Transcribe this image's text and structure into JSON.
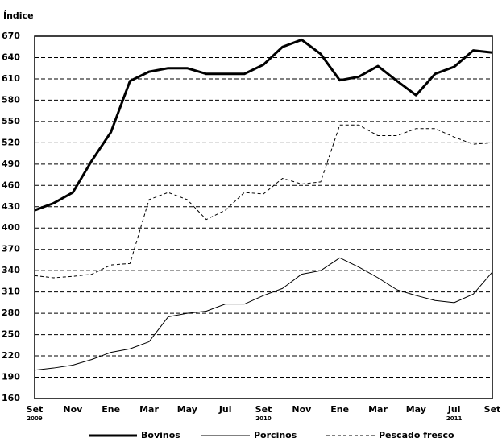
{
  "chart_data": {
    "type": "line",
    "y_label": "Índice",
    "categories": [
      "Set",
      null,
      "Nov",
      null,
      "Ene",
      null,
      "Mar",
      null,
      "May",
      null,
      "Jul",
      null,
      "Set",
      null,
      "Nov",
      null,
      "Ene",
      null,
      "Mar",
      null,
      "May",
      null,
      "Jul",
      null,
      "Set"
    ],
    "year_labels": [
      {
        "index": 0,
        "label": "2009"
      },
      {
        "index": 12,
        "label": "2010"
      },
      {
        "index": 22,
        "label": "2011"
      }
    ],
    "series": [
      {
        "name": "Bovinos",
        "color": "#000000",
        "style": "thick",
        "values": [
          425,
          435,
          450,
          495,
          535,
          607,
          620,
          625,
          625,
          617,
          617,
          617,
          630,
          655,
          665,
          645,
          608,
          613,
          628,
          607,
          587,
          617,
          627,
          650,
          647
        ]
      },
      {
        "name": "Porcinos",
        "color": "#000000",
        "style": "thin",
        "values": [
          200,
          203,
          207,
          215,
          225,
          230,
          240,
          275,
          280,
          283,
          293,
          293,
          305,
          315,
          335,
          340,
          358,
          345,
          330,
          313,
          305,
          298,
          295,
          307,
          338
        ]
      },
      {
        "name": "Pescado fresco",
        "color": "#000000",
        "style": "dashed",
        "values": [
          333,
          330,
          332,
          335,
          348,
          350,
          440,
          450,
          440,
          412,
          425,
          450,
          448,
          470,
          462,
          465,
          545,
          545,
          530,
          530,
          540,
          540,
          528,
          518,
          520
        ]
      }
    ],
    "ylim": [
      160,
      670
    ],
    "yticks": [
      160,
      190,
      220,
      250,
      280,
      310,
      340,
      370,
      400,
      430,
      460,
      490,
      520,
      550,
      580,
      610,
      640,
      670
    ],
    "grid": true
  }
}
